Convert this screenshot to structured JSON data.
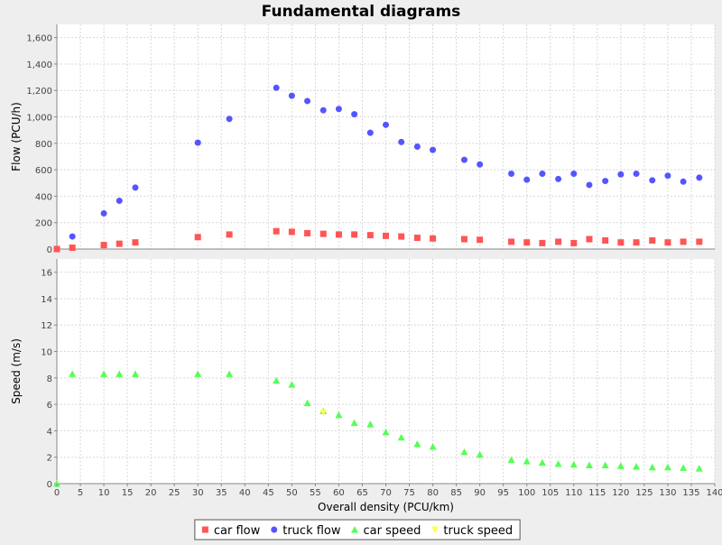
{
  "chart_data": {
    "type": "scatter",
    "title": "Fundamental diagrams",
    "xlabel": "Overall density (PCU/km)",
    "xlim": [
      0,
      140
    ],
    "xticks": [
      0,
      5,
      10,
      15,
      20,
      25,
      30,
      35,
      40,
      45,
      50,
      55,
      60,
      65,
      70,
      75,
      80,
      85,
      90,
      95,
      100,
      105,
      110,
      115,
      120,
      125,
      130,
      135,
      140
    ],
    "grid": true,
    "legend_position": "bottom",
    "subplots": [
      {
        "ylabel": "Flow (PCU/h)",
        "ylim": [
          0,
          1700
        ],
        "yticks": [
          0,
          200,
          400,
          600,
          800,
          1000,
          1200,
          1400,
          1600
        ],
        "ytick_labels": [
          "0",
          "200",
          "400",
          "600",
          "800",
          "1,000",
          "1,200",
          "1,400",
          "1,600"
        ],
        "series": [
          {
            "name": "car flow",
            "color": "#ff5555",
            "marker": "square",
            "x": [
              0,
              3.3,
              10,
              13.3,
              16.7,
              30,
              36.7,
              46.7,
              50,
              53.3,
              56.7,
              60,
              63.3,
              66.7,
              70,
              73.3,
              76.7,
              80,
              86.7,
              90,
              96.7,
              100,
              103.3,
              106.7,
              110,
              113.3,
              116.7,
              120,
              123.3,
              126.7,
              130,
              133.3,
              136.7
            ],
            "y": [
              0,
              10,
              30,
              40,
              50,
              90,
              110,
              135,
              130,
              120,
              115,
              110,
              110,
              105,
              100,
              95,
              85,
              80,
              75,
              70,
              55,
              50,
              45,
              55,
              45,
              75,
              65,
              50,
              50,
              65,
              50,
              55,
              55
            ]
          },
          {
            "name": "truck flow",
            "color": "#5555ff",
            "marker": "circle",
            "x": [
              3.3,
              10,
              13.3,
              16.7,
              30,
              36.7,
              46.7,
              50,
              53.3,
              56.7,
              60,
              63.3,
              66.7,
              70,
              73.3,
              76.7,
              80,
              86.7,
              90,
              96.7,
              100,
              103.3,
              106.7,
              110,
              113.3,
              116.7,
              120,
              123.3,
              126.7,
              130,
              133.3,
              136.7
            ],
            "y": [
              95,
              270,
              365,
              465,
              805,
              985,
              1220,
              1160,
              1120,
              1050,
              1060,
              1020,
              880,
              940,
              810,
              775,
              750,
              675,
              640,
              570,
              525,
              570,
              530,
              570,
              485,
              515,
              565,
              570,
              520,
              555,
              510,
              540
            ]
          }
        ]
      },
      {
        "ylabel": "Speed (m/s)",
        "ylim": [
          0,
          17
        ],
        "yticks": [
          0,
          2,
          4,
          6,
          8,
          10,
          12,
          14,
          16
        ],
        "ytick_labels": [
          "0",
          "2",
          "4",
          "6",
          "8",
          "10",
          "12",
          "14",
          "16"
        ],
        "series": [
          {
            "name": "car speed",
            "color": "#55ff55",
            "marker": "triangle",
            "x": [
              0,
              3.3,
              10,
              13.3,
              16.7,
              30,
              36.7,
              46.7,
              50,
              53.3,
              56.7,
              60,
              63.3,
              66.7,
              70,
              73.3,
              76.7,
              80,
              86.7,
              90,
              96.7,
              100,
              103.3,
              106.7,
              110,
              113.3,
              116.7,
              120,
              123.3,
              126.7,
              130,
              133.3,
              136.7
            ],
            "y": [
              0,
              8.3,
              8.3,
              8.3,
              8.3,
              8.3,
              8.3,
              7.8,
              7.5,
              6.1,
              5.5,
              5.2,
              4.6,
              4.5,
              3.9,
              3.5,
              3.0,
              2.8,
              2.4,
              2.2,
              1.8,
              1.7,
              1.6,
              1.5,
              1.45,
              1.4,
              1.4,
              1.35,
              1.3,
              1.25,
              1.25,
              1.2,
              1.15
            ]
          },
          {
            "name": "truck speed",
            "color": "#ffff55",
            "marker": "triangle-down",
            "x": [
              56.7
            ],
            "y": [
              5.4
            ]
          }
        ]
      }
    ]
  }
}
